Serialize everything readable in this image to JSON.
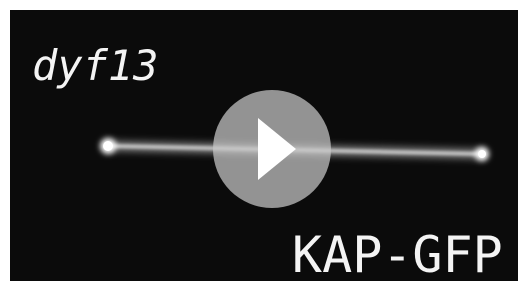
{
  "overlay": {
    "top_left_label": "dyf13",
    "bottom_right_label": "KAP-GFP"
  }
}
